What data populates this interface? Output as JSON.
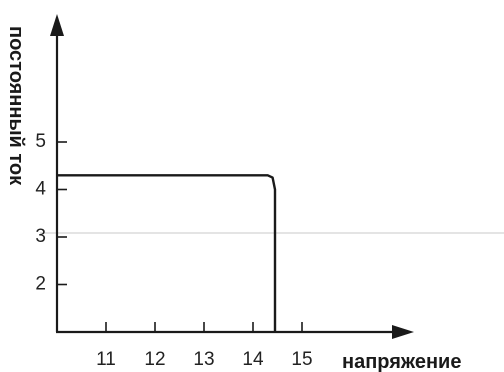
{
  "chart_data": {
    "type": "line",
    "xlabel": "напряжение",
    "ylabel": "постоянный ток",
    "x_ticks": [
      "11",
      "12",
      "13",
      "14",
      "15"
    ],
    "y_ticks": [
      "2",
      "3",
      "4",
      "5"
    ],
    "xlim": [
      10,
      16
    ],
    "ylim": [
      1,
      7
    ],
    "grid": false,
    "series": [
      {
        "x": [
          10,
          14.3,
          14.4,
          14.45,
          14.45
        ],
        "y": [
          4.3,
          4.3,
          4.25,
          4.0,
          1.0
        ]
      }
    ]
  }
}
